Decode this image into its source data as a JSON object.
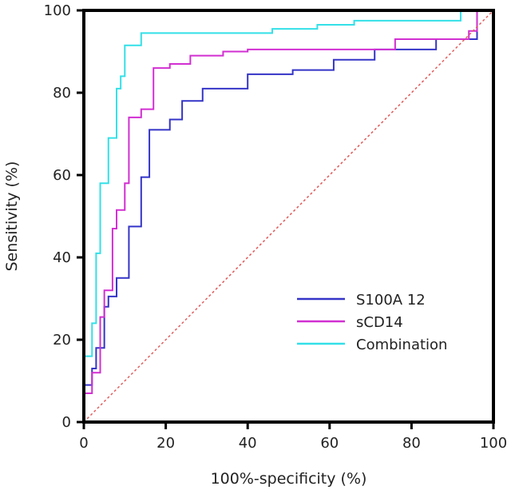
{
  "chart_data": {
    "type": "line",
    "title": "",
    "xlabel": "100%-specificity (%)",
    "ylabel": "Sensitivity (%)",
    "xlim": [
      0,
      100
    ],
    "ylim": [
      0,
      100
    ],
    "xticks": [
      0,
      20,
      40,
      60,
      80,
      100
    ],
    "yticks": [
      0,
      20,
      40,
      60,
      80,
      100
    ],
    "grid": false,
    "legend_position": "bottom-right",
    "series": [
      {
        "name": "S100A 12",
        "color": "#3434c8",
        "points": [
          [
            0,
            0
          ],
          [
            0,
            9
          ],
          [
            2,
            9
          ],
          [
            2,
            13
          ],
          [
            3,
            13
          ],
          [
            3,
            18
          ],
          [
            5,
            18
          ],
          [
            5,
            28
          ],
          [
            6,
            28
          ],
          [
            6,
            30.5
          ],
          [
            8,
            30.5
          ],
          [
            8,
            35
          ],
          [
            11,
            35
          ],
          [
            11,
            47.5
          ],
          [
            14,
            47.5
          ],
          [
            14,
            59.5
          ],
          [
            16,
            59.5
          ],
          [
            16,
            71
          ],
          [
            21,
            71
          ],
          [
            21,
            73.5
          ],
          [
            24,
            73.5
          ],
          [
            24,
            78
          ],
          [
            29,
            78
          ],
          [
            29,
            81
          ],
          [
            40,
            81
          ],
          [
            40,
            84.5
          ],
          [
            51,
            84.5
          ],
          [
            51,
            85.5
          ],
          [
            61,
            85.5
          ],
          [
            61,
            88
          ],
          [
            71,
            88
          ],
          [
            71,
            90.5
          ],
          [
            86,
            90.5
          ],
          [
            86,
            93
          ],
          [
            96,
            93
          ],
          [
            96,
            100
          ],
          [
            100,
            100
          ]
        ]
      },
      {
        "name": "sCD14",
        "color": "#d22fd2",
        "points": [
          [
            0,
            0
          ],
          [
            0,
            7
          ],
          [
            2,
            7
          ],
          [
            2,
            12
          ],
          [
            4,
            12
          ],
          [
            4,
            25.5
          ],
          [
            5,
            25.5
          ],
          [
            5,
            32
          ],
          [
            7,
            32
          ],
          [
            7,
            47
          ],
          [
            8,
            47
          ],
          [
            8,
            51.5
          ],
          [
            10,
            51.5
          ],
          [
            10,
            58
          ],
          [
            11,
            58
          ],
          [
            11,
            74
          ],
          [
            14,
            74
          ],
          [
            14,
            76
          ],
          [
            17,
            76
          ],
          [
            17,
            86
          ],
          [
            21,
            86
          ],
          [
            21,
            87
          ],
          [
            26,
            87
          ],
          [
            26,
            89
          ],
          [
            34,
            89
          ],
          [
            34,
            90
          ],
          [
            40,
            90
          ],
          [
            40,
            90.5
          ],
          [
            76,
            90.5
          ],
          [
            76,
            93
          ],
          [
            94,
            93
          ],
          [
            94,
            95
          ],
          [
            96,
            95
          ],
          [
            96,
            100
          ],
          [
            100,
            100
          ]
        ]
      },
      {
        "name": "Combination",
        "color": "#33e0e8",
        "points": [
          [
            0,
            0
          ],
          [
            0,
            16
          ],
          [
            2,
            16
          ],
          [
            2,
            24
          ],
          [
            3,
            24
          ],
          [
            3,
            41
          ],
          [
            4,
            41
          ],
          [
            4,
            58
          ],
          [
            6,
            58
          ],
          [
            6,
            69
          ],
          [
            8,
            69
          ],
          [
            8,
            81
          ],
          [
            9,
            81
          ],
          [
            9,
            84
          ],
          [
            10,
            84
          ],
          [
            10,
            91.5
          ],
          [
            14,
            91.5
          ],
          [
            14,
            94.5
          ],
          [
            46,
            94.5
          ],
          [
            46,
            95.5
          ],
          [
            57,
            95.5
          ],
          [
            57,
            96.5
          ],
          [
            66,
            96.5
          ],
          [
            66,
            97.5
          ],
          [
            92,
            97.5
          ],
          [
            92,
            100
          ],
          [
            100,
            100
          ]
        ]
      },
      {
        "name": "Reference",
        "color": "#e05a5a",
        "dashed": true,
        "points": [
          [
            0,
            0
          ],
          [
            100,
            100
          ]
        ]
      }
    ],
    "legend": [
      "S100A 12",
      "sCD14",
      "Combination"
    ]
  }
}
